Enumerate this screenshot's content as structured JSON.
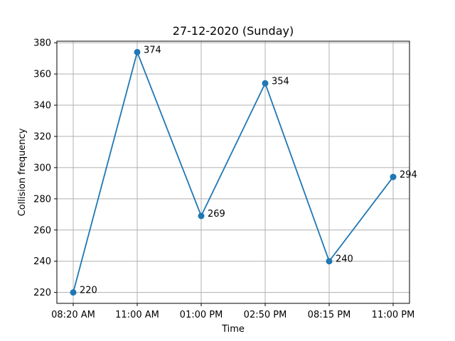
{
  "chart_data": {
    "type": "line",
    "title": "27-12-2020 (Sunday)",
    "xlabel": "Time",
    "ylabel": "Collision frequency",
    "categories": [
      "08:20 AM",
      "11:00 AM",
      "01:00 PM",
      "02:50 PM",
      "08:15 PM",
      "11:00 PM"
    ],
    "series": [
      {
        "values": [
          220,
          374,
          269,
          354,
          240,
          294
        ]
      }
    ],
    "data_labels": [
      "220",
      "374",
      "269",
      "354",
      "240",
      "294"
    ],
    "ylim": [
      213,
      381
    ],
    "yticks": [
      220,
      240,
      260,
      280,
      300,
      320,
      340,
      360,
      380
    ],
    "ytick_labels": [
      "220",
      "240",
      "260",
      "280",
      "300",
      "320",
      "340",
      "360",
      "380"
    ],
    "grid": true,
    "line_color": "#1f77b4"
  }
}
